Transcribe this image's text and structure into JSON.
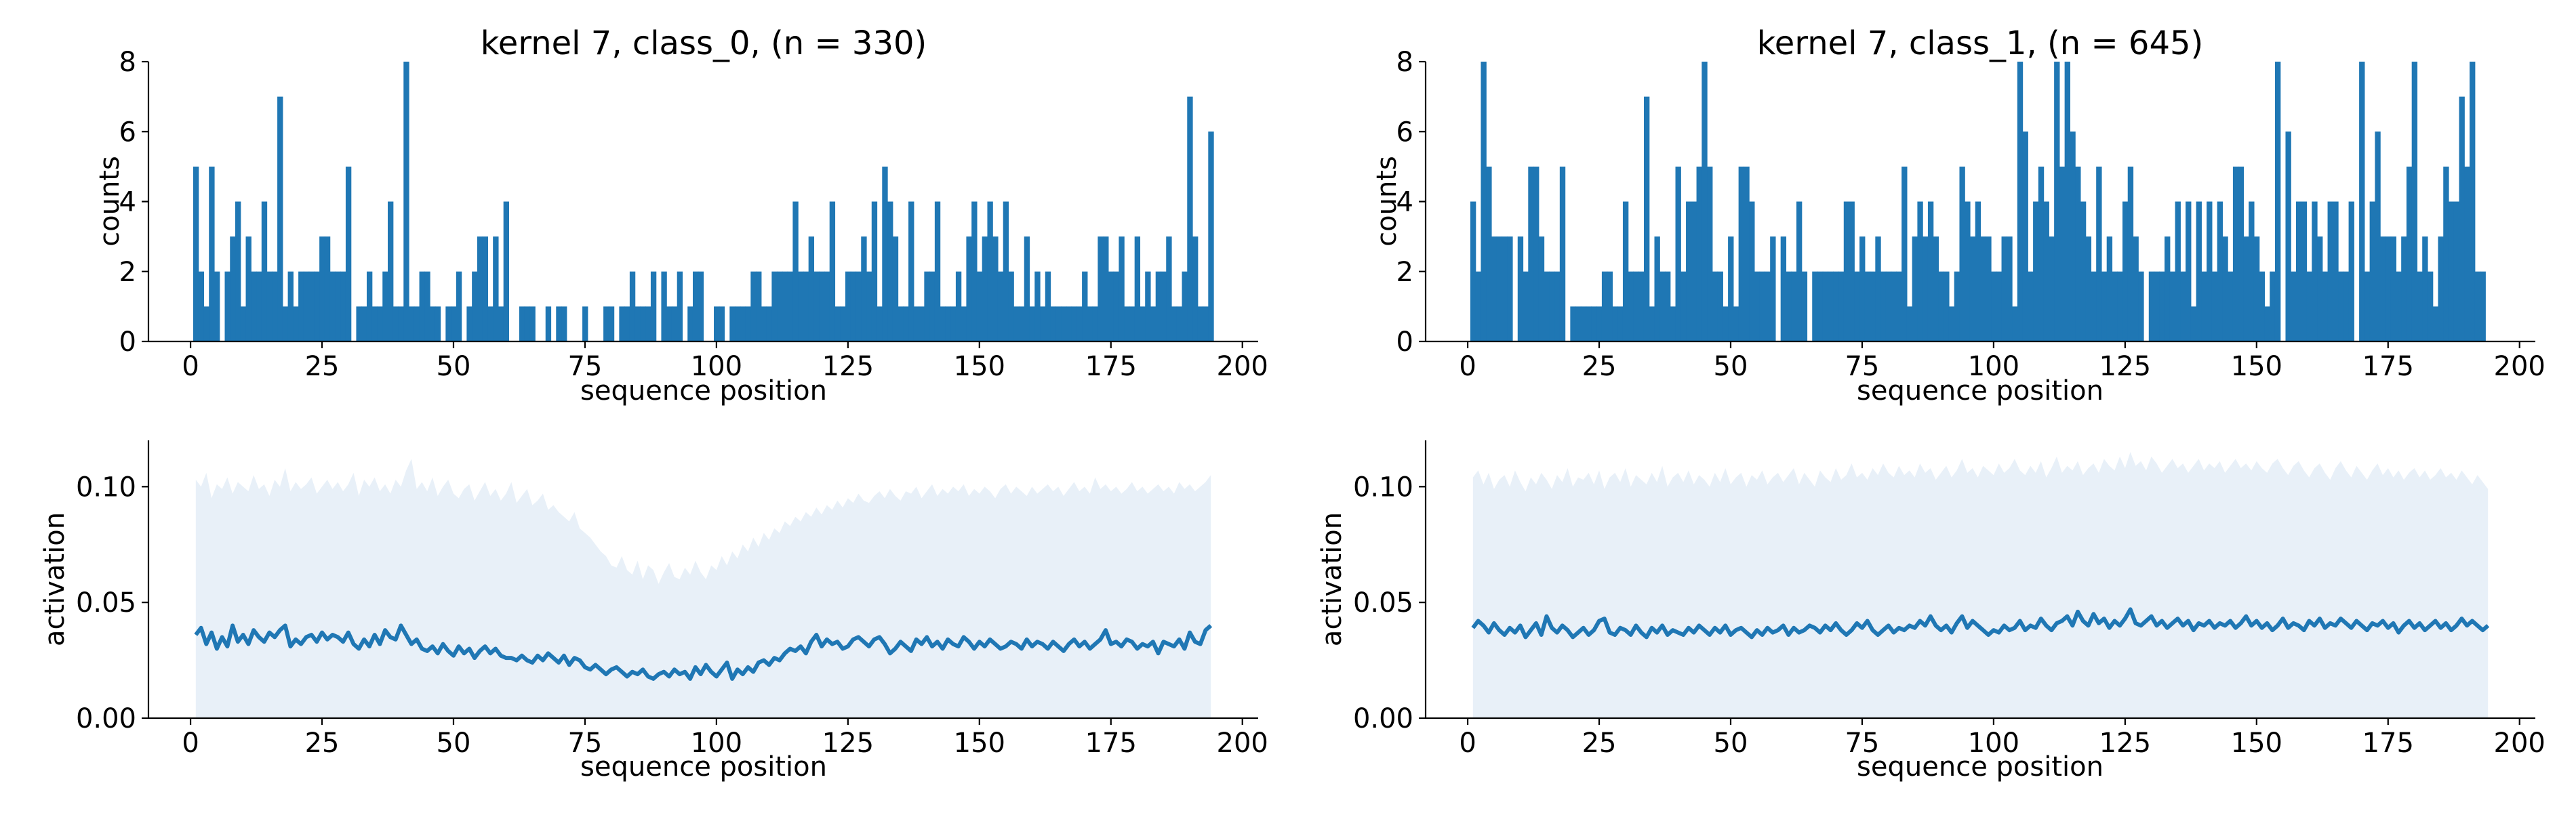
{
  "colors": {
    "bar": "#1f77b4",
    "line": "#1f77b4",
    "band": "#e8f0f8"
  },
  "chart_data": [
    {
      "type": "bar",
      "title": "kernel 7, class_0, (n = 330)",
      "xlabel": "sequence position",
      "ylabel": "counts",
      "xlim": [
        -8,
        203
      ],
      "ylim": [
        0,
        8
      ],
      "xticks": [
        0,
        25,
        50,
        75,
        100,
        125,
        150,
        175,
        200
      ],
      "yticks": [
        0,
        2,
        4,
        6,
        8
      ],
      "x_start": 0,
      "values": [
        0,
        5,
        2,
        1,
        5,
        2,
        0,
        2,
        3,
        4,
        1,
        3,
        2,
        2,
        4,
        2,
        2,
        7,
        1,
        2,
        1,
        2,
        2,
        2,
        2,
        3,
        3,
        2,
        2,
        2,
        5,
        0,
        1,
        1,
        2,
        1,
        1,
        2,
        4,
        1,
        1,
        8,
        1,
        1,
        2,
        2,
        1,
        1,
        0,
        1,
        1,
        2,
        0,
        1,
        2,
        3,
        3,
        1,
        3,
        1,
        4,
        0,
        0,
        1,
        1,
        1,
        0,
        0,
        1,
        0,
        1,
        1,
        0,
        0,
        0,
        1,
        0,
        0,
        0,
        1,
        1,
        0,
        1,
        1,
        2,
        1,
        1,
        1,
        2,
        0,
        2,
        1,
        1,
        2,
        0,
        1,
        2,
        2,
        0,
        0,
        1,
        1,
        0,
        1,
        1,
        1,
        1,
        2,
        2,
        1,
        1,
        2,
        2,
        2,
        2,
        4,
        2,
        2,
        3,
        2,
        2,
        2,
        4,
        1,
        1,
        2,
        2,
        2,
        3,
        2,
        4,
        1,
        5,
        4,
        3,
        1,
        1,
        4,
        1,
        1,
        2,
        2,
        4,
        1,
        1,
        1,
        2,
        1,
        3,
        4,
        2,
        3,
        4,
        3,
        2,
        4,
        2,
        1,
        1,
        3,
        1,
        2,
        1,
        2,
        1,
        1,
        1,
        1,
        1,
        1,
        2,
        1,
        1,
        3,
        3,
        2,
        2,
        3,
        1,
        1,
        3,
        1,
        2,
        1,
        2,
        2,
        3,
        1,
        1,
        2,
        7,
        3,
        1,
        1,
        6
      ]
    },
    {
      "type": "bar",
      "title": "kernel 7, class_1, (n = 645)",
      "xlabel": "sequence position",
      "ylabel": "counts",
      "xlim": [
        -8,
        203
      ],
      "ylim": [
        0,
        8
      ],
      "xticks": [
        0,
        25,
        50,
        75,
        100,
        125,
        150,
        175,
        200
      ],
      "yticks": [
        0,
        2,
        4,
        6,
        8
      ],
      "x_start": 0,
      "values": [
        0,
        4,
        2,
        8,
        5,
        3,
        3,
        3,
        3,
        0,
        3,
        2,
        5,
        5,
        3,
        2,
        2,
        2,
        5,
        0,
        1,
        1,
        1,
        1,
        1,
        1,
        2,
        2,
        1,
        1,
        4,
        2,
        2,
        2,
        7,
        1,
        3,
        2,
        2,
        1,
        5,
        2,
        4,
        4,
        5,
        8,
        5,
        2,
        2,
        1,
        3,
        1,
        5,
        5,
        4,
        2,
        2,
        2,
        3,
        0,
        3,
        2,
        2,
        4,
        2,
        0,
        2,
        2,
        2,
        2,
        2,
        2,
        4,
        4,
        2,
        3,
        2,
        2,
        3,
        2,
        2,
        2,
        2,
        5,
        1,
        3,
        4,
        3,
        4,
        3,
        2,
        2,
        1,
        2,
        5,
        4,
        3,
        4,
        3,
        3,
        2,
        2,
        3,
        3,
        1,
        8,
        6,
        2,
        4,
        5,
        4,
        3,
        8,
        5,
        8,
        6,
        5,
        4,
        3,
        2,
        5,
        2,
        3,
        2,
        2,
        4,
        5,
        3,
        2,
        0,
        2,
        2,
        2,
        3,
        2,
        4,
        2,
        4,
        1,
        4,
        2,
        4,
        2,
        4,
        3,
        2,
        5,
        5,
        3,
        4,
        3,
        2,
        1,
        2,
        8,
        0,
        6,
        2,
        4,
        4,
        2,
        4,
        3,
        2,
        4,
        4,
        2,
        2,
        4,
        0,
        8,
        2,
        4,
        6,
        3,
        3,
        3,
        2,
        3,
        5,
        8,
        2,
        3,
        2,
        1,
        3,
        5,
        4,
        4,
        7,
        5,
        8,
        2,
        2
      ]
    },
    {
      "type": "line",
      "xlabel": "sequence position",
      "ylabel": "activation",
      "xlim": [
        -8,
        203
      ],
      "ylim": [
        0,
        0.12
      ],
      "xticks": [
        0,
        25,
        50,
        75,
        100,
        125,
        150,
        175,
        200
      ],
      "yticks": [
        0.0,
        0.05,
        0.1
      ],
      "ytick_labels": [
        "0.00",
        "0.05",
        "0.10"
      ],
      "band_lower": 0,
      "x_start": 1,
      "mean": [
        0.036,
        0.039,
        0.032,
        0.037,
        0.03,
        0.035,
        0.031,
        0.04,
        0.033,
        0.036,
        0.032,
        0.038,
        0.035,
        0.033,
        0.037,
        0.035,
        0.038,
        0.04,
        0.031,
        0.034,
        0.032,
        0.035,
        0.036,
        0.033,
        0.037,
        0.034,
        0.036,
        0.035,
        0.033,
        0.037,
        0.032,
        0.03,
        0.034,
        0.031,
        0.036,
        0.032,
        0.038,
        0.035,
        0.034,
        0.04,
        0.036,
        0.032,
        0.034,
        0.03,
        0.029,
        0.031,
        0.028,
        0.032,
        0.029,
        0.027,
        0.031,
        0.028,
        0.03,
        0.026,
        0.029,
        0.031,
        0.028,
        0.03,
        0.027,
        0.026,
        0.026,
        0.025,
        0.027,
        0.025,
        0.024,
        0.027,
        0.025,
        0.028,
        0.026,
        0.024,
        0.027,
        0.023,
        0.026,
        0.025,
        0.022,
        0.021,
        0.023,
        0.021,
        0.019,
        0.021,
        0.022,
        0.02,
        0.018,
        0.02,
        0.019,
        0.021,
        0.018,
        0.017,
        0.019,
        0.02,
        0.018,
        0.021,
        0.019,
        0.02,
        0.017,
        0.022,
        0.019,
        0.023,
        0.02,
        0.018,
        0.021,
        0.024,
        0.017,
        0.021,
        0.019,
        0.022,
        0.02,
        0.024,
        0.025,
        0.023,
        0.026,
        0.025,
        0.028,
        0.03,
        0.029,
        0.031,
        0.028,
        0.033,
        0.036,
        0.031,
        0.034,
        0.032,
        0.033,
        0.03,
        0.031,
        0.034,
        0.035,
        0.033,
        0.031,
        0.034,
        0.035,
        0.032,
        0.028,
        0.03,
        0.033,
        0.031,
        0.029,
        0.034,
        0.032,
        0.035,
        0.031,
        0.033,
        0.03,
        0.034,
        0.032,
        0.031,
        0.035,
        0.033,
        0.03,
        0.033,
        0.031,
        0.034,
        0.032,
        0.03,
        0.031,
        0.033,
        0.032,
        0.03,
        0.034,
        0.031,
        0.033,
        0.032,
        0.03,
        0.033,
        0.031,
        0.029,
        0.032,
        0.034,
        0.031,
        0.033,
        0.03,
        0.032,
        0.034,
        0.038,
        0.032,
        0.033,
        0.031,
        0.034,
        0.033,
        0.03,
        0.032,
        0.031,
        0.033,
        0.028,
        0.033,
        0.032,
        0.031,
        0.034,
        0.03,
        0.037,
        0.033,
        0.032,
        0.038,
        0.04
      ],
      "band_upper": [
        0.103,
        0.1,
        0.106,
        0.095,
        0.101,
        0.099,
        0.104,
        0.097,
        0.102,
        0.1,
        0.098,
        0.105,
        0.099,
        0.101,
        0.096,
        0.103,
        0.1,
        0.108,
        0.098,
        0.102,
        0.099,
        0.101,
        0.104,
        0.097,
        0.1,
        0.103,
        0.099,
        0.102,
        0.098,
        0.101,
        0.106,
        0.096,
        0.103,
        0.1,
        0.104,
        0.098,
        0.101,
        0.097,
        0.103,
        0.1,
        0.107,
        0.112,
        0.099,
        0.102,
        0.098,
        0.104,
        0.096,
        0.1,
        0.103,
        0.097,
        0.095,
        0.099,
        0.101,
        0.094,
        0.098,
        0.102,
        0.096,
        0.099,
        0.094,
        0.097,
        0.102,
        0.093,
        0.096,
        0.099,
        0.092,
        0.094,
        0.097,
        0.09,
        0.092,
        0.089,
        0.087,
        0.085,
        0.089,
        0.082,
        0.08,
        0.078,
        0.075,
        0.072,
        0.07,
        0.066,
        0.065,
        0.07,
        0.064,
        0.062,
        0.068,
        0.06,
        0.066,
        0.064,
        0.058,
        0.063,
        0.067,
        0.061,
        0.06,
        0.065,
        0.062,
        0.068,
        0.063,
        0.06,
        0.066,
        0.064,
        0.07,
        0.066,
        0.072,
        0.069,
        0.075,
        0.072,
        0.078,
        0.074,
        0.08,
        0.077,
        0.082,
        0.08,
        0.085,
        0.083,
        0.087,
        0.085,
        0.089,
        0.087,
        0.091,
        0.088,
        0.092,
        0.09,
        0.094,
        0.091,
        0.095,
        0.093,
        0.097,
        0.094,
        0.093,
        0.096,
        0.098,
        0.095,
        0.099,
        0.096,
        0.094,
        0.098,
        0.097,
        0.1,
        0.095,
        0.098,
        0.101,
        0.096,
        0.099,
        0.097,
        0.1,
        0.098,
        0.101,
        0.096,
        0.099,
        0.097,
        0.1,
        0.098,
        0.095,
        0.099,
        0.101,
        0.097,
        0.1,
        0.098,
        0.096,
        0.1,
        0.097,
        0.099,
        0.101,
        0.098,
        0.1,
        0.096,
        0.099,
        0.102,
        0.098,
        0.1,
        0.097,
        0.104,
        0.099,
        0.101,
        0.098,
        0.1,
        0.097,
        0.099,
        0.102,
        0.098,
        0.1,
        0.097,
        0.099,
        0.101,
        0.098,
        0.1,
        0.097,
        0.102,
        0.099,
        0.101,
        0.098,
        0.1,
        0.102,
        0.105
      ]
    },
    {
      "type": "line",
      "xlabel": "sequence position",
      "ylabel": "activation",
      "xlim": [
        -8,
        203
      ],
      "ylim": [
        0,
        0.12
      ],
      "xticks": [
        0,
        25,
        50,
        75,
        100,
        125,
        150,
        175,
        200
      ],
      "yticks": [
        0.0,
        0.05,
        0.1
      ],
      "ytick_labels": [
        "0.00",
        "0.05",
        "0.10"
      ],
      "band_lower": 0,
      "x_start": 1,
      "mean": [
        0.039,
        0.042,
        0.04,
        0.037,
        0.041,
        0.038,
        0.036,
        0.039,
        0.037,
        0.04,
        0.035,
        0.038,
        0.041,
        0.036,
        0.044,
        0.039,
        0.037,
        0.04,
        0.038,
        0.035,
        0.037,
        0.039,
        0.036,
        0.038,
        0.042,
        0.043,
        0.037,
        0.036,
        0.039,
        0.038,
        0.036,
        0.04,
        0.037,
        0.035,
        0.039,
        0.037,
        0.04,
        0.036,
        0.038,
        0.037,
        0.036,
        0.039,
        0.037,
        0.04,
        0.038,
        0.036,
        0.039,
        0.037,
        0.04,
        0.036,
        0.038,
        0.039,
        0.037,
        0.035,
        0.038,
        0.036,
        0.039,
        0.037,
        0.038,
        0.04,
        0.036,
        0.039,
        0.037,
        0.038,
        0.04,
        0.039,
        0.037,
        0.04,
        0.038,
        0.041,
        0.038,
        0.036,
        0.038,
        0.041,
        0.039,
        0.042,
        0.038,
        0.036,
        0.038,
        0.04,
        0.037,
        0.039,
        0.038,
        0.04,
        0.039,
        0.042,
        0.04,
        0.044,
        0.04,
        0.038,
        0.04,
        0.037,
        0.041,
        0.044,
        0.039,
        0.042,
        0.04,
        0.038,
        0.036,
        0.038,
        0.037,
        0.04,
        0.038,
        0.039,
        0.042,
        0.038,
        0.04,
        0.039,
        0.043,
        0.04,
        0.038,
        0.041,
        0.042,
        0.044,
        0.04,
        0.046,
        0.042,
        0.04,
        0.045,
        0.041,
        0.043,
        0.039,
        0.042,
        0.04,
        0.043,
        0.047,
        0.041,
        0.04,
        0.042,
        0.044,
        0.04,
        0.042,
        0.039,
        0.041,
        0.043,
        0.04,
        0.042,
        0.038,
        0.041,
        0.04,
        0.042,
        0.039,
        0.041,
        0.04,
        0.042,
        0.039,
        0.041,
        0.044,
        0.04,
        0.042,
        0.039,
        0.041,
        0.038,
        0.04,
        0.043,
        0.039,
        0.041,
        0.04,
        0.038,
        0.042,
        0.04,
        0.043,
        0.039,
        0.041,
        0.04,
        0.043,
        0.041,
        0.039,
        0.042,
        0.04,
        0.038,
        0.041,
        0.04,
        0.042,
        0.039,
        0.041,
        0.037,
        0.04,
        0.042,
        0.039,
        0.041,
        0.038,
        0.04,
        0.042,
        0.039,
        0.041,
        0.038,
        0.04,
        0.043,
        0.04,
        0.042,
        0.04,
        0.038,
        0.04
      ],
      "band_upper": [
        0.104,
        0.107,
        0.101,
        0.106,
        0.099,
        0.103,
        0.105,
        0.1,
        0.107,
        0.102,
        0.098,
        0.104,
        0.101,
        0.106,
        0.103,
        0.099,
        0.105,
        0.102,
        0.108,
        0.1,
        0.104,
        0.103,
        0.106,
        0.101,
        0.107,
        0.099,
        0.104,
        0.106,
        0.102,
        0.108,
        0.1,
        0.105,
        0.103,
        0.101,
        0.106,
        0.102,
        0.109,
        0.1,
        0.104,
        0.106,
        0.102,
        0.107,
        0.101,
        0.105,
        0.103,
        0.1,
        0.106,
        0.102,
        0.108,
        0.101,
        0.104,
        0.106,
        0.1,
        0.105,
        0.103,
        0.107,
        0.101,
        0.104,
        0.106,
        0.102,
        0.105,
        0.108,
        0.101,
        0.106,
        0.103,
        0.1,
        0.107,
        0.104,
        0.102,
        0.108,
        0.103,
        0.105,
        0.11,
        0.104,
        0.106,
        0.103,
        0.108,
        0.105,
        0.11,
        0.106,
        0.104,
        0.109,
        0.105,
        0.107,
        0.104,
        0.11,
        0.106,
        0.108,
        0.103,
        0.106,
        0.109,
        0.104,
        0.107,
        0.112,
        0.106,
        0.108,
        0.104,
        0.109,
        0.107,
        0.105,
        0.11,
        0.106,
        0.108,
        0.112,
        0.107,
        0.105,
        0.109,
        0.106,
        0.111,
        0.104,
        0.108,
        0.113,
        0.106,
        0.109,
        0.107,
        0.111,
        0.105,
        0.108,
        0.11,
        0.106,
        0.112,
        0.109,
        0.107,
        0.113,
        0.108,
        0.115,
        0.109,
        0.111,
        0.107,
        0.113,
        0.11,
        0.106,
        0.109,
        0.112,
        0.108,
        0.11,
        0.106,
        0.109,
        0.112,
        0.107,
        0.11,
        0.108,
        0.111,
        0.106,
        0.109,
        0.112,
        0.108,
        0.11,
        0.107,
        0.111,
        0.108,
        0.106,
        0.11,
        0.112,
        0.108,
        0.105,
        0.109,
        0.111,
        0.107,
        0.104,
        0.108,
        0.11,
        0.106,
        0.103,
        0.108,
        0.111,
        0.107,
        0.104,
        0.109,
        0.106,
        0.103,
        0.107,
        0.11,
        0.105,
        0.108,
        0.104,
        0.107,
        0.103,
        0.106,
        0.108,
        0.104,
        0.107,
        0.103,
        0.105,
        0.108,
        0.104,
        0.106,
        0.103,
        0.107,
        0.104,
        0.101,
        0.105,
        0.102,
        0.099
      ]
    }
  ]
}
